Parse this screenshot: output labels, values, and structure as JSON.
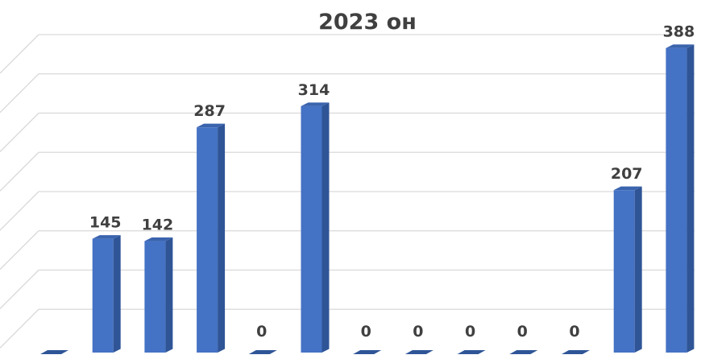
{
  "chart_data": {
    "type": "bar",
    "title": "2023 он",
    "categories": [
      "",
      "",
      "",
      "",
      "",
      "",
      "",
      "",
      "",
      "",
      "",
      "",
      ""
    ],
    "values": [
      null,
      145,
      142,
      287,
      0,
      314,
      0,
      0,
      0,
      0,
      0,
      207,
      388
    ],
    "data_labels": [
      "",
      "145",
      "142",
      "287",
      "0",
      "314",
      "0",
      "0",
      "0",
      "0",
      "0",
      "207",
      "388"
    ],
    "ylim": [
      0,
      400
    ],
    "grid": true,
    "legend": "none",
    "style": "3d-bar",
    "colors": {
      "bar_front": "#4472C4",
      "bar_side": "#2F5597",
      "bar_top": "#3B64AE",
      "grid": "#D9D9D9",
      "text": "#404040"
    }
  }
}
